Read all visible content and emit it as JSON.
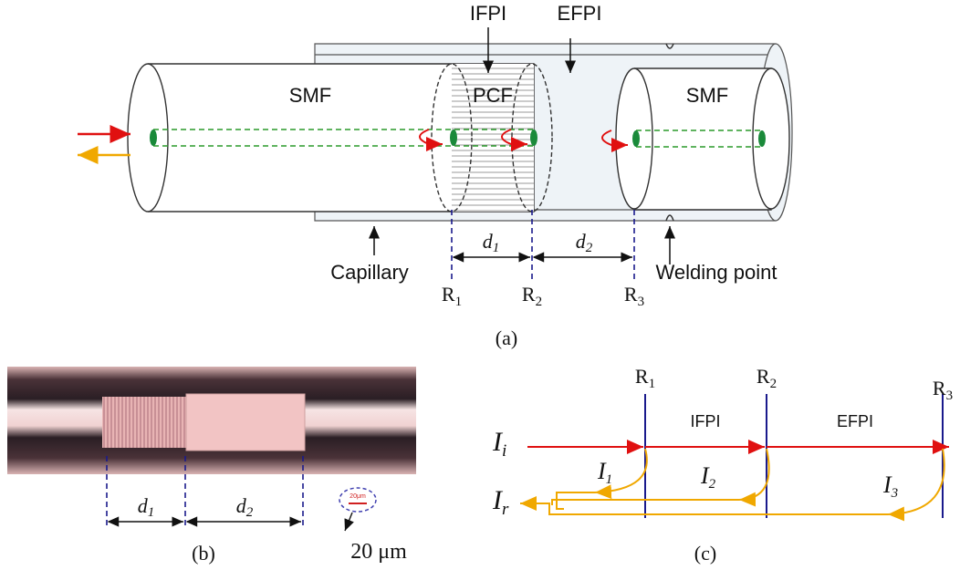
{
  "panel_a": {
    "ifpi": "IFPI",
    "efpi": "EFPI",
    "smf_left": "SMF",
    "pcf": "PCF",
    "smf_right": "SMF",
    "d1": {
      "base": "d",
      "sub": "1"
    },
    "d2": {
      "base": "d",
      "sub": "2"
    },
    "capillary": "Capillary",
    "welding_point": "Welding point",
    "r1": {
      "base": "R",
      "sub": "1"
    },
    "r2": {
      "base": "R",
      "sub": "2"
    },
    "r3": {
      "base": "R",
      "sub": "3"
    },
    "caption": "(a)"
  },
  "panel_b": {
    "d1": {
      "base": "d",
      "sub": "1"
    },
    "d2": {
      "base": "d",
      "sub": "2"
    },
    "scale_bar_label": "20μm",
    "scale_text": "20 μm",
    "caption": "(b)"
  },
  "panel_c": {
    "r1": {
      "base": "R",
      "sub": "1"
    },
    "r2": {
      "base": "R",
      "sub": "2"
    },
    "r3": {
      "base": "R",
      "sub": "3"
    },
    "ifpi": "IFPI",
    "efpi": "EFPI",
    "i_i": {
      "base": "I",
      "sub": "i"
    },
    "i_r": {
      "base": "I",
      "sub": "r"
    },
    "i_1": {
      "base": "I",
      "sub": "1"
    },
    "i_2": {
      "base": "I",
      "sub": "2"
    },
    "i_3": {
      "base": "I",
      "sub": "3"
    },
    "caption": "(c)"
  }
}
